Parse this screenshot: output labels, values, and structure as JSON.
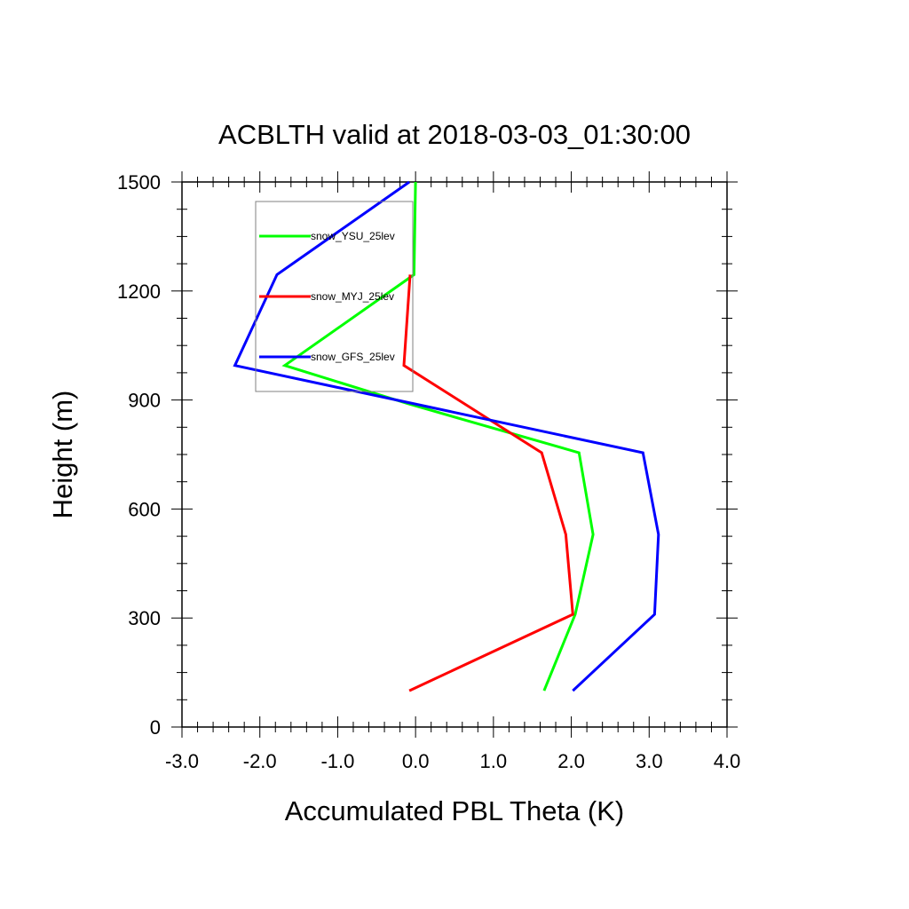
{
  "chart_data": {
    "type": "line",
    "title": "ACBLTH valid at 2018-03-03_01:30:00",
    "xlabel": "Accumulated PBL Theta (K)",
    "ylabel": "Height (m)",
    "xlim": [
      -3.0,
      4.0
    ],
    "ylim": [
      0,
      1500
    ],
    "xticks": [
      -3.0,
      -2.0,
      -1.0,
      0.0,
      1.0,
      2.0,
      3.0,
      4.0
    ],
    "xtick_labels": [
      "-3.0",
      "-2.0",
      "-1.0",
      "0.0",
      "1.0",
      "2.0",
      "3.0",
      "4.0"
    ],
    "yticks": [
      0,
      300,
      600,
      900,
      1200,
      1500
    ],
    "ytick_labels": [
      "0",
      "300",
      "600",
      "900",
      "1200",
      "1500"
    ],
    "grid": false,
    "legend_position": "top-left",
    "series": [
      {
        "name": "snow_YSU_25lev",
        "color": "#00ff00",
        "points": [
          [
            1.65,
            100
          ],
          [
            2.05,
            310
          ],
          [
            2.28,
            530
          ],
          [
            2.1,
            755
          ],
          [
            -0.1,
            890
          ],
          [
            -1.68,
            995
          ],
          [
            -0.02,
            1245
          ],
          [
            0.0,
            1500
          ]
        ]
      },
      {
        "name": "snow_MYJ_25lev",
        "color": "#ff0000",
        "points": [
          [
            -0.08,
            100
          ],
          [
            2.02,
            310
          ],
          [
            1.93,
            530
          ],
          [
            1.62,
            755
          ],
          [
            -0.15,
            995
          ],
          [
            -0.07,
            1245
          ]
        ]
      },
      {
        "name": "snow_GFS_25lev",
        "color": "#0000ff",
        "points": [
          [
            2.02,
            100
          ],
          [
            3.07,
            310
          ],
          [
            3.12,
            530
          ],
          [
            2.92,
            755
          ],
          [
            -2.32,
            995
          ],
          [
            -1.78,
            1245
          ],
          [
            -0.08,
            1500
          ]
        ]
      }
    ]
  }
}
